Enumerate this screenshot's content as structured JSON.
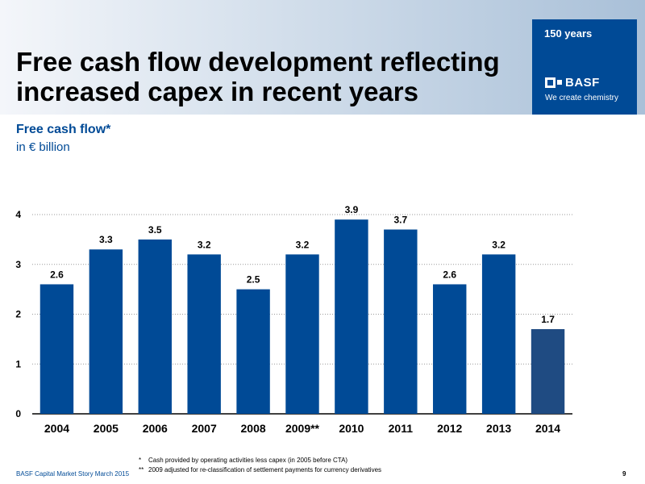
{
  "header": {
    "title": "Free cash flow development reflecting increased capex in recent years"
  },
  "brand": {
    "years": "150 years",
    "logo": "BASF",
    "tagline": "We create chemistry",
    "colors": {
      "brand": "#004a96",
      "bar": "#004a96",
      "bar_highlight": "#1f4b82"
    }
  },
  "subtitle": "Free cash flow*",
  "unit": "in € billion",
  "chart_data": {
    "type": "bar",
    "categories": [
      "2004",
      "2005",
      "2006",
      "2007",
      "2008",
      "2009**",
      "2010",
      "2011",
      "2012",
      "2013",
      "2014"
    ],
    "values": [
      2.6,
      3.3,
      3.5,
      3.2,
      2.5,
      3.2,
      3.9,
      3.7,
      2.6,
      3.2,
      1.7
    ],
    "ylim": [
      0,
      4
    ],
    "yticks": [
      0,
      1,
      2,
      3,
      4
    ],
    "grid": "horizontal dotted",
    "legend": "none",
    "highlight_index": 10
  },
  "footnotes": [
    {
      "mark": "*",
      "text": "Cash provided by operating activities less capex (in 2005 before CTA)"
    },
    {
      "mark": "**",
      "text": "2009 adjusted for re-classification of settlement payments for currency derivatives"
    }
  ],
  "footer": {
    "left": "BASF Capital Market Story March 2015",
    "page": "9"
  }
}
